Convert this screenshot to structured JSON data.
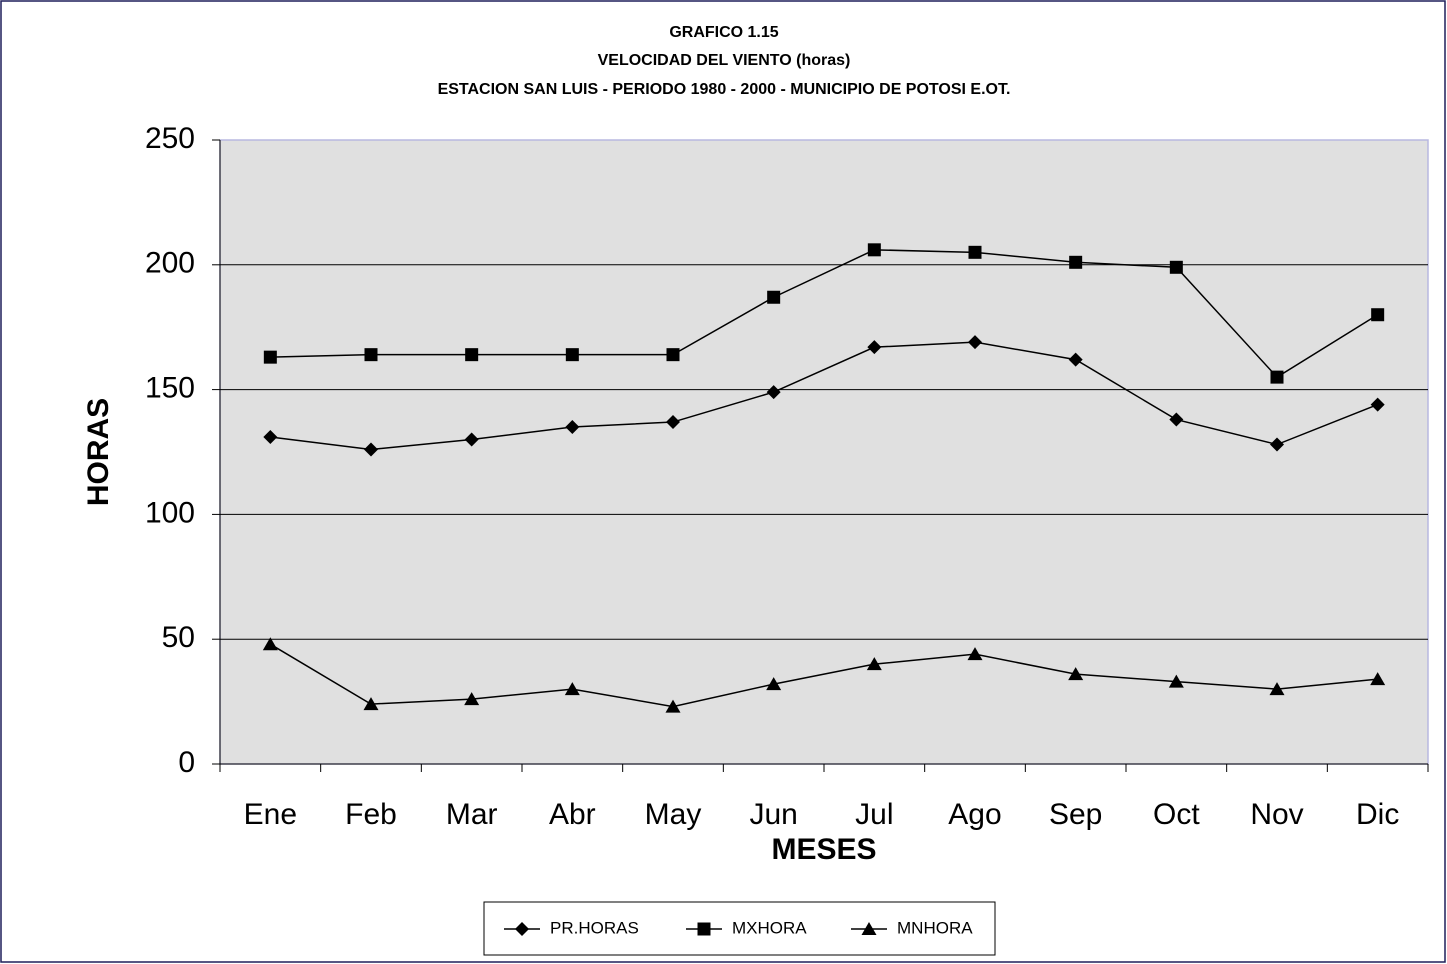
{
  "chart_data": {
    "type": "line",
    "title": [
      "GRAFICO 1.15",
      "VELOCIDAD DEL VIENTO (horas)",
      "ESTACION SAN LUIS - PERIODO 1980 - 2000 - MUNICIPIO DE POTOSI  E.OT."
    ],
    "x_label": "MESES",
    "y_label": "HORAS",
    "categories": [
      "Ene",
      "Feb",
      "Mar",
      "Abr",
      "May",
      "Jun",
      "Jul",
      "Ago",
      "Sep",
      "Oct",
      "Nov",
      "Dic"
    ],
    "series": [
      {
        "name": "PR.HORAS",
        "color": "#000000",
        "marker": "diamond",
        "values": [
          131,
          126,
          130,
          135,
          137,
          149,
          167,
          169,
          162,
          138,
          128,
          144
        ]
      },
      {
        "name": "MXHORA",
        "color": "#000000",
        "marker": "square",
        "values": [
          163,
          164,
          164,
          164,
          164,
          187,
          206,
          205,
          201,
          199,
          155,
          180
        ]
      },
      {
        "name": "MNHORA",
        "color": "#000000",
        "marker": "triangle",
        "values": [
          48,
          24,
          26,
          30,
          23,
          32,
          40,
          44,
          36,
          33,
          30,
          34
        ]
      }
    ],
    "ylim": [
      0,
      250
    ],
    "yticks": [
      0,
      50,
      100,
      150,
      200,
      250
    ],
    "grid": true,
    "legend": "bottom"
  }
}
